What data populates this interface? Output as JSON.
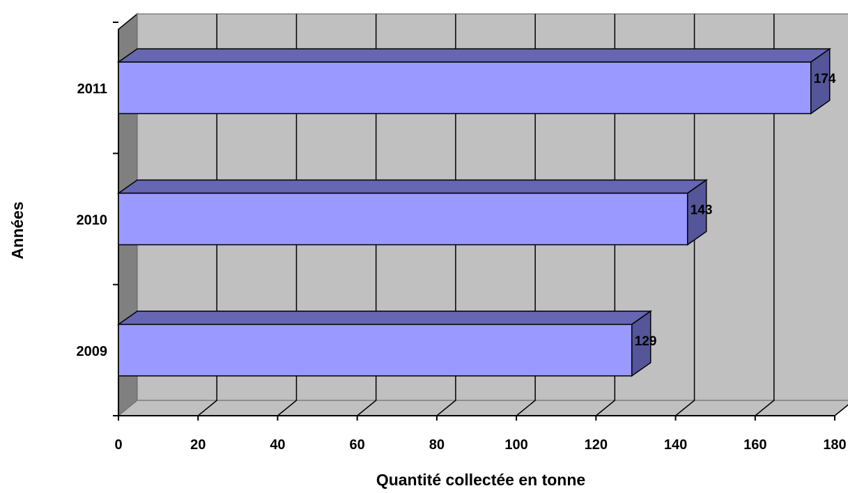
{
  "chart_data": {
    "type": "bar",
    "orientation": "horizontal",
    "style": "3d",
    "categories": [
      "2009",
      "2010",
      "2011"
    ],
    "values": [
      129,
      143,
      174
    ],
    "data_labels": [
      "129",
      "143",
      "174"
    ],
    "title": "",
    "xlabel": "Quantité collectée en tonne",
    "ylabel": "Années",
    "xlim": [
      0,
      180
    ],
    "x_ticks": [
      0,
      20,
      40,
      60,
      80,
      100,
      120,
      140,
      160,
      180
    ],
    "x_tick_labels": [
      "0",
      "20",
      "40",
      "60",
      "80",
      "100",
      "120",
      "140",
      "160",
      "180"
    ],
    "grid": true,
    "legend": "none",
    "colors": {
      "bar_front": "#9999FF",
      "bar_top": "#6666B3",
      "bar_side": "#555599",
      "wall": "#C0C0C0",
      "wall_left": "#808080",
      "gridline": "#000000"
    }
  }
}
